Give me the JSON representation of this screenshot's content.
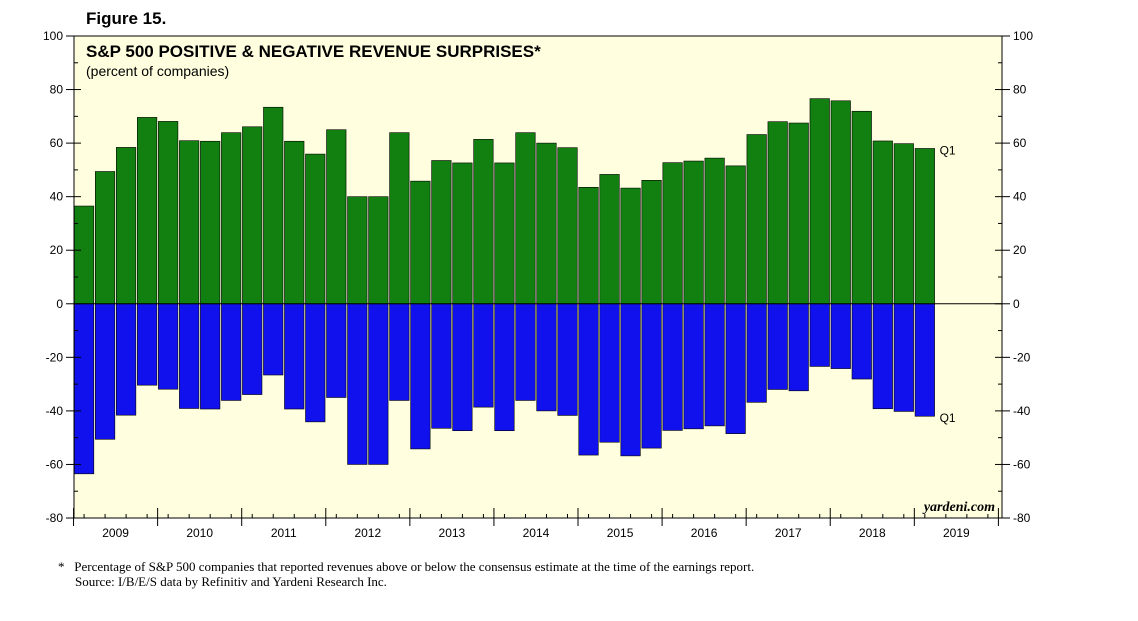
{
  "figure_label": "Figure 15.",
  "footnote": {
    "marker": "*",
    "text": "Percentage of S&P 500 companies that reported revenues above or below the consensus estimate at the time of the earnings report.",
    "source": "Source: I/B/E/S data by Refinitiv and Yardeni Research Inc."
  },
  "colors": {
    "positive": "#118011",
    "negative": "#1111ee",
    "plot_bg": "#ffffe0"
  },
  "chart_data": {
    "type": "bar",
    "title": "S&P 500 POSITIVE & NEGATIVE REVENUE SURPRISES*",
    "subtitle": "(percent of companies)",
    "watermark": "yardeni.com",
    "xlabel": "",
    "ylabel": "",
    "ylim": [
      -80,
      100
    ],
    "yticks": [
      100,
      80,
      60,
      40,
      20,
      0,
      -20,
      -40,
      -60,
      -80
    ],
    "years": [
      "2009",
      "2010",
      "2011",
      "2012",
      "2013",
      "2014",
      "2015",
      "2016",
      "2017",
      "2018",
      "2019"
    ],
    "categories": [
      "2009Q1",
      "2009Q2",
      "2009Q3",
      "2009Q4",
      "2010Q1",
      "2010Q2",
      "2010Q3",
      "2010Q4",
      "2011Q1",
      "2011Q2",
      "2011Q3",
      "2011Q4",
      "2012Q1",
      "2012Q2",
      "2012Q3",
      "2012Q4",
      "2013Q1",
      "2013Q2",
      "2013Q3",
      "2013Q4",
      "2014Q1",
      "2014Q2",
      "2014Q3",
      "2014Q4",
      "2015Q1",
      "2015Q2",
      "2015Q3",
      "2015Q4",
      "2016Q1",
      "2016Q2",
      "2016Q3",
      "2016Q4",
      "2017Q1",
      "2017Q2",
      "2017Q3",
      "2017Q4",
      "2018Q1",
      "2018Q2",
      "2018Q3",
      "2018Q4",
      "2019Q1"
    ],
    "series": [
      {
        "name": "Positive revenue surprises",
        "values": [
          36.5,
          49.4,
          58.4,
          69.6,
          68.1,
          60.9,
          60.7,
          63.9,
          66.1,
          73.4,
          60.7,
          55.9,
          65.0,
          40.0,
          40.0,
          63.9,
          45.8,
          53.5,
          52.6,
          61.4,
          52.6,
          63.9,
          60.0,
          58.3,
          43.5,
          48.3,
          43.2,
          46.1,
          52.7,
          53.3,
          54.4,
          51.5,
          63.2,
          68.0,
          67.5,
          76.6,
          75.8,
          71.9,
          60.8,
          59.8,
          58.0
        ],
        "end_label": "Q1"
      },
      {
        "name": "Negative revenue surprises",
        "values": [
          -63.5,
          -50.6,
          -41.6,
          -30.4,
          -31.9,
          -39.1,
          -39.3,
          -36.1,
          -33.9,
          -26.6,
          -39.3,
          -44.1,
          -35.0,
          -60.0,
          -60.0,
          -36.1,
          -54.2,
          -46.5,
          -47.4,
          -38.6,
          -47.4,
          -36.1,
          -40.0,
          -41.7,
          -56.5,
          -51.7,
          -56.8,
          -53.9,
          -47.3,
          -46.7,
          -45.6,
          -48.5,
          -36.8,
          -32.0,
          -32.5,
          -23.4,
          -24.2,
          -28.1,
          -39.2,
          -40.2,
          -42.0
        ],
        "end_label": "Q1"
      }
    ]
  }
}
